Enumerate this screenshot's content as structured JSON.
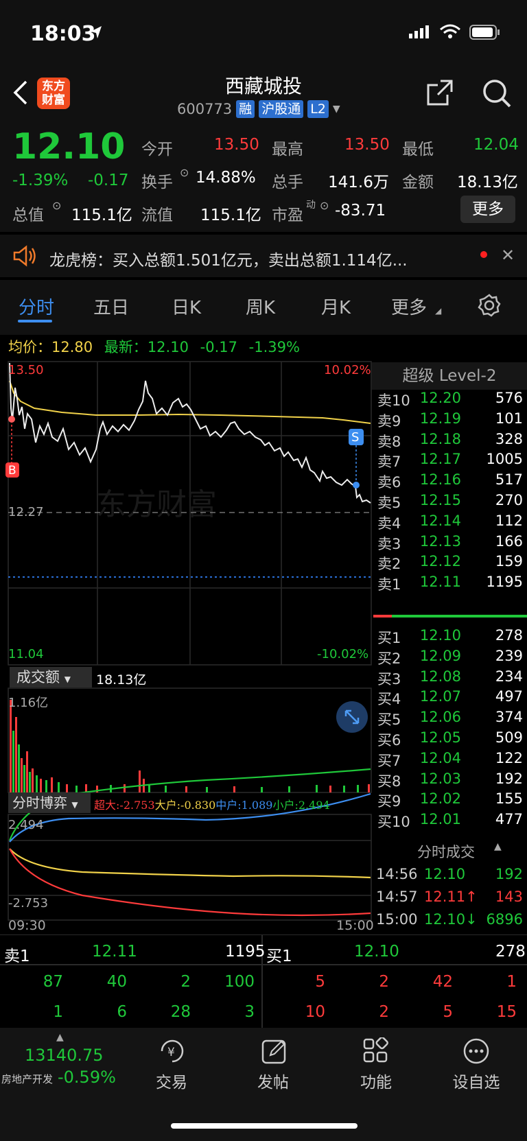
{
  "status": {
    "time": "18:03"
  },
  "header": {
    "logo_text": "东方财富",
    "title": "西藏城投",
    "code": "600773",
    "tags": [
      "融",
      "沪股通",
      "L2"
    ]
  },
  "quote": {
    "price": "12.10",
    "pct": "-1.39%",
    "chg": "-0.17",
    "open_label": "今开",
    "open": "13.50",
    "high_label": "最高",
    "high": "13.50",
    "low_label": "最低",
    "low": "12.04",
    "turnover_label": "换手",
    "turnover": "14.88%",
    "volume_label": "总手",
    "volume": "141.6万",
    "amount_label": "金额",
    "amount": "18.13亿",
    "mcap_label": "总值",
    "mcap": "115.1亿",
    "float_label": "流值",
    "float": "115.1亿",
    "pe_label": "市盈",
    "pe_sup": "动",
    "pe": "-83.71",
    "more": "更多"
  },
  "notice": {
    "text": "龙虎榜：买入总额1.501亿元，卖出总额1.114亿..."
  },
  "tabs": [
    "分时",
    "五日",
    "日K",
    "周K",
    "月K",
    "更多"
  ],
  "avg": {
    "avg_label": "均价：",
    "avg": "12.80",
    "latest_label": "最新：",
    "latest": "12.10",
    "chg": "-0.17",
    "pct": "-1.39%"
  },
  "chart": {
    "top_price": "13.50",
    "top_pct": "10.02%",
    "ref_price": "12.27",
    "bottom_price": "11.04",
    "bottom_pct": "-10.02%",
    "marker_b": "B",
    "marker_s": "S",
    "watermark": "东方财富",
    "vol_label": "成交额",
    "vol_total": "18.13亿",
    "vol_max": "1.16亿",
    "game_label": "分时博弈",
    "super_label": "超大:",
    "super": "-2.753",
    "large_label": "大户:",
    "large": "-0.830",
    "mid_label": "中户:",
    "mid": "1.089",
    "small_label": "小户:",
    "small": "2.494",
    "game_max": "2.494",
    "game_min": "-2.753",
    "time_start": "09:30",
    "time_end": "15:00"
  },
  "chart_data": {
    "type": "line",
    "title": "",
    "x": [
      "09:30",
      "15:00"
    ],
    "series": [],
    "ylim": [
      11.04,
      13.5
    ]
  },
  "orderbook": {
    "title": "超级 Level-2",
    "asks": [
      [
        "卖10",
        "12.20",
        "576"
      ],
      [
        "卖9",
        "12.19",
        "101"
      ],
      [
        "卖8",
        "12.18",
        "328"
      ],
      [
        "卖7",
        "12.17",
        "1005"
      ],
      [
        "卖6",
        "12.16",
        "517"
      ],
      [
        "卖5",
        "12.15",
        "270"
      ],
      [
        "卖4",
        "12.14",
        "112"
      ],
      [
        "卖3",
        "12.13",
        "166"
      ],
      [
        "卖2",
        "12.12",
        "159"
      ],
      [
        "卖1",
        "12.11",
        "1195"
      ]
    ],
    "bids": [
      [
        "买1",
        "12.10",
        "278"
      ],
      [
        "买2",
        "12.09",
        "239"
      ],
      [
        "买3",
        "12.08",
        "234"
      ],
      [
        "买4",
        "12.07",
        "497"
      ],
      [
        "买5",
        "12.06",
        "374"
      ],
      [
        "买6",
        "12.05",
        "509"
      ],
      [
        "买7",
        "12.04",
        "122"
      ],
      [
        "买8",
        "12.03",
        "192"
      ],
      [
        "买9",
        "12.02",
        "155"
      ],
      [
        "买10",
        "12.01",
        "477"
      ]
    ],
    "trades_title": "分时成交",
    "trades": [
      [
        "14:56",
        "12.10",
        "192",
        ""
      ],
      [
        "14:57",
        "12.11↑",
        "143",
        ""
      ],
      [
        "15:00",
        "12.10↓",
        "6896",
        ""
      ]
    ]
  },
  "queue": {
    "ask_label": "卖1",
    "ask_price": "12.11",
    "ask_vol": "1195",
    "bid_label": "买1",
    "bid_price": "12.10",
    "bid_vol": "278",
    "ask_r1": [
      "87",
      "40",
      "2",
      "100"
    ],
    "ask_r2": [
      "1",
      "6",
      "28",
      "3"
    ],
    "bid_r1": [
      "5",
      "2",
      "42",
      "1"
    ],
    "bid_r2": [
      "10",
      "2",
      "5",
      "15"
    ]
  },
  "bottom": {
    "index_value": "13140.75",
    "index_name": "房地产开发",
    "index_pct": "-0.59%",
    "items": [
      "交易",
      "发帖",
      "功能",
      "设自选"
    ]
  }
}
